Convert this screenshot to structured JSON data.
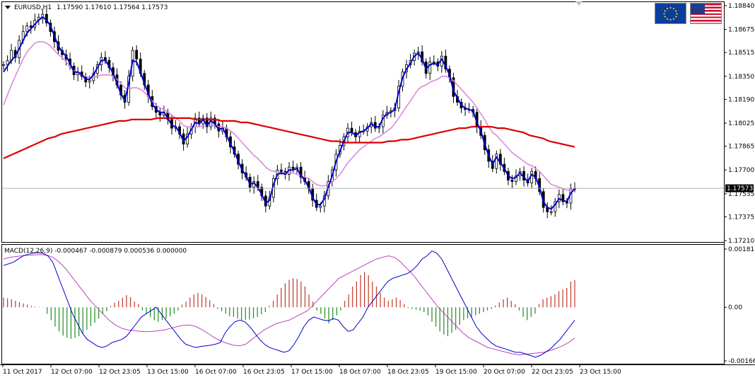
{
  "header": {
    "symbol": "EURUSD,H1",
    "ohlc": "1.17590 1.17610 1.17564 1.17573"
  },
  "macd_header": {
    "label": "MACD(12,26,9) -0.000467 -0.000879 0.000536 0.000000"
  },
  "flags": {
    "left": "eu-flag-icon",
    "right": "us-flag-icon"
  },
  "colors": {
    "bull_candle": "#000000",
    "bear_candle": "#000000",
    "ma_fast": "#0000cc",
    "ma_mid": "#dd88dd",
    "ma_slow": "#dd0000",
    "histogram_pos": "#c0392b",
    "histogram_neg": "#1e8c1e",
    "macd_line": "#0000cc",
    "signal_line": "#bb44bb",
    "grid_line": "#c0c0c0"
  },
  "chart_data": [
    {
      "type": "candlestick",
      "title": "EURUSD,H1",
      "yticks": [
        "1.18840",
        "1.18675",
        "1.18515",
        "1.18350",
        "1.18190",
        "1.18025",
        "1.17865",
        "1.17700",
        "1.17535",
        "1.17375",
        "1.17210"
      ],
      "ylim": [
        1.1721,
        1.1884
      ],
      "current_price": "1.17573",
      "xticks": [
        "11 Oct 2017",
        "12 Oct 07:00",
        "12 Oct 23:05",
        "13 Oct 15:00",
        "16 Oct 07:00",
        "16 Oct 23:05",
        "17 Oct 15:00",
        "18 Oct 07:00",
        "18 Oct 23:05",
        "19 Oct 15:00",
        "20 Oct 07:00",
        "22 Oct 23:05",
        "23 Oct 15:00"
      ],
      "close": [
        1.1843,
        1.1846,
        1.1853,
        1.1848,
        1.186,
        1.1866,
        1.187,
        1.1869,
        1.1874,
        1.1876,
        1.1878,
        1.1872,
        1.1866,
        1.1859,
        1.1853,
        1.185,
        1.1847,
        1.1842,
        1.1836,
        1.1838,
        1.1835,
        1.1831,
        1.1832,
        1.1837,
        1.1843,
        1.1848,
        1.1846,
        1.1841,
        1.1836,
        1.1829,
        1.1822,
        1.1817,
        1.1835,
        1.1853,
        1.1847,
        1.1837,
        1.1829,
        1.1821,
        1.1814,
        1.181,
        1.1808,
        1.181,
        1.1805,
        1.1799,
        1.18,
        1.1795,
        1.1788,
        1.1795,
        1.18,
        1.1806,
        1.1802,
        1.1806,
        1.18,
        1.1806,
        1.1802,
        1.1797,
        1.1799,
        1.1793,
        1.1786,
        1.1781,
        1.1774,
        1.1768,
        1.1765,
        1.1758,
        1.1762,
        1.1758,
        1.1752,
        1.1745,
        1.1751,
        1.1764,
        1.177,
        1.1769,
        1.1767,
        1.1772,
        1.1771,
        1.1772,
        1.1765,
        1.1762,
        1.1757,
        1.1749,
        1.1744,
        1.1745,
        1.1752,
        1.1762,
        1.177,
        1.1781,
        1.1787,
        1.1793,
        1.1799,
        1.1796,
        1.1793,
        1.1797,
        1.1797,
        1.18,
        1.1803,
        1.1799,
        1.18,
        1.1808,
        1.181,
        1.1811,
        1.1813,
        1.1828,
        1.1838,
        1.1843,
        1.1846,
        1.1851,
        1.1852,
        1.1845,
        1.1837,
        1.1845,
        1.1845,
        1.1842,
        1.1849,
        1.184,
        1.1834,
        1.1821,
        1.1817,
        1.1813,
        1.1812,
        1.1812,
        1.181,
        1.18,
        1.1794,
        1.1784,
        1.1776,
        1.1771,
        1.1781,
        1.1774,
        1.1769,
        1.1763,
        1.1762,
        1.1766,
        1.1769,
        1.1763,
        1.1761,
        1.1769,
        1.1764,
        1.1755,
        1.1744,
        1.1741,
        1.1741,
        1.1748,
        1.1753,
        1.1748,
        1.1747,
        1.1757,
        1.1757
      ],
      "ma_fast": [
        1.1838,
        1.1842,
        1.1846,
        1.1849,
        1.1854,
        1.186,
        1.1865,
        1.1868,
        1.1871,
        1.1874,
        1.1876,
        1.1874,
        1.187,
        1.1863,
        1.1856,
        1.1852,
        1.1849,
        1.1844,
        1.1838,
        1.1838,
        1.1836,
        1.1833,
        1.1833,
        1.1836,
        1.1841,
        1.1846,
        1.1846,
        1.1842,
        1.1837,
        1.183,
        1.1823,
        1.1818,
        1.183,
        1.1846,
        1.1845,
        1.1838,
        1.183,
        1.1823,
        1.1816,
        1.1812,
        1.181,
        1.181,
        1.1806,
        1.1801,
        1.18,
        1.1796,
        1.179,
        1.1793,
        1.1798,
        1.1803,
        1.1802,
        1.1805,
        1.1801,
        1.1804,
        1.1802,
        1.1798,
        1.1799,
        1.1794,
        1.1788,
        1.1783,
        1.1776,
        1.177,
        1.1766,
        1.176,
        1.1761,
        1.1758,
        1.1753,
        1.1747,
        1.1749,
        1.176,
        1.1767,
        1.1768,
        1.1767,
        1.177,
        1.177,
        1.1771,
        1.1766,
        1.1763,
        1.1758,
        1.1751,
        1.1746,
        1.1746,
        1.175,
        1.1758,
        1.1766,
        1.1776,
        1.1783,
        1.179,
        1.1796,
        1.1796,
        1.1794,
        1.1796,
        1.1797,
        1.1799,
        1.1802,
        1.18,
        1.18,
        1.1806,
        1.1809,
        1.181,
        1.1812,
        1.1824,
        1.1834,
        1.184,
        1.1844,
        1.1849,
        1.1851,
        1.1847,
        1.184,
        1.1843,
        1.1844,
        1.1843,
        1.1847,
        1.1842,
        1.1836,
        1.1825,
        1.182,
        1.1815,
        1.1813,
        1.1812,
        1.1811,
        1.1803,
        1.1797,
        1.1788,
        1.178,
        1.1774,
        1.1779,
        1.1775,
        1.1771,
        1.1766,
        1.1764,
        1.1765,
        1.1768,
        1.1765,
        1.1762,
        1.1767,
        1.1765,
        1.1758,
        1.1748,
        1.1744,
        1.1743,
        1.1746,
        1.175,
        1.1749,
        1.1748,
        1.1754,
        1.1757
      ],
      "ma_mid": [
        1.1815,
        1.1822,
        1.1829,
        1.1835,
        1.1841,
        1.1847,
        1.1852,
        1.1855,
        1.1858,
        1.1859,
        1.1859,
        1.1858,
        1.1856,
        1.1853,
        1.185,
        1.1848,
        1.1845,
        1.1842,
        1.1839,
        1.1837,
        1.1836,
        1.1835,
        1.1834,
        1.1834,
        1.1835,
        1.1836,
        1.1836,
        1.1836,
        1.1835,
        1.1833,
        1.183,
        1.1827,
        1.1826,
        1.1827,
        1.1827,
        1.1826,
        1.1824,
        1.1821,
        1.1818,
        1.1815,
        1.1813,
        1.1812,
        1.181,
        1.1808,
        1.1806,
        1.1804,
        1.1801,
        1.18,
        1.18,
        1.18,
        1.18,
        1.1801,
        1.1801,
        1.1801,
        1.1801,
        1.18,
        1.18,
        1.1799,
        1.1797,
        1.1795,
        1.1792,
        1.1789,
        1.1786,
        1.1783,
        1.178,
        1.1778,
        1.1775,
        1.1772,
        1.177,
        1.1769,
        1.1769,
        1.1768,
        1.1768,
        1.1768,
        1.1768,
        1.1767,
        1.1766,
        1.1765,
        1.1764,
        1.1762,
        1.176,
        1.1759,
        1.1759,
        1.176,
        1.1762,
        1.1764,
        1.1767,
        1.1771,
        1.1775,
        1.1778,
        1.1781,
        1.1784,
        1.1786,
        1.1788,
        1.179,
        1.1792,
        1.1793,
        1.1795,
        1.1797,
        1.1799,
        1.1802,
        1.1806,
        1.181,
        1.1814,
        1.1818,
        1.1822,
        1.1826,
        1.1828,
        1.1829,
        1.1831,
        1.1832,
        1.1833,
        1.1835,
        1.1835,
        1.1834,
        1.1832,
        1.1829,
        1.1826,
        1.1823,
        1.182,
        1.1817,
        1.1813,
        1.1809,
        1.1805,
        1.18,
        1.1796,
        1.1794,
        1.1791,
        1.1788,
        1.1785,
        1.1782,
        1.178,
        1.1778,
        1.1776,
        1.1774,
        1.1773,
        1.1771,
        1.1769,
        1.1766,
        1.1763,
        1.176,
        1.1759,
        1.1758,
        1.1757,
        1.1756,
        1.1756,
        1.1756
      ],
      "ma_slow_start": 1.1778,
      "ma_slow": [
        1.1778,
        1.178,
        1.1782,
        1.1784,
        1.1786,
        1.1788,
        1.179,
        1.1792,
        1.1793,
        1.1795,
        1.1796,
        1.1797,
        1.1798,
        1.1799,
        1.18,
        1.1801,
        1.1802,
        1.1803,
        1.1804,
        1.1804,
        1.1805,
        1.1805,
        1.1805,
        1.1805,
        1.1806,
        1.1806,
        1.1806,
        1.1806,
        1.1806,
        1.1806,
        1.1805,
        1.1805,
        1.1805,
        1.1805,
        1.1804,
        1.1804,
        1.1804,
        1.1803,
        1.1803,
        1.1802,
        1.1801,
        1.18,
        1.1799,
        1.1798,
        1.1797,
        1.1796,
        1.1795,
        1.1794,
        1.1793,
        1.1792,
        1.1791,
        1.179,
        1.179,
        1.1789,
        1.1789,
        1.1789,
        1.1789,
        1.1789,
        1.1789,
        1.1789,
        1.179,
        1.179,
        1.1791,
        1.1791,
        1.1792,
        1.1793,
        1.1794,
        1.1795,
        1.1796,
        1.1797,
        1.1798,
        1.1799,
        1.1799,
        1.18,
        1.18,
        1.18,
        1.18,
        1.1799,
        1.1799,
        1.1798,
        1.1797,
        1.1796,
        1.1794,
        1.1793,
        1.1792,
        1.179,
        1.1789,
        1.1788,
        1.1787,
        1.1786
      ]
    },
    {
      "type": "macd",
      "title": "MACD(12,26,9)",
      "yticks": [
        "0.00181",
        "0.00",
        "-0.001667"
      ],
      "ylim": [
        -0.001667,
        0.00181
      ],
      "histogram": [
        0.0003,
        0.00028,
        0.00025,
        0.0002,
        0.00016,
        0.00012,
        8e-05,
        4e-05,
        2e-05,
        1e-05,
        1e-05,
        -0.0002,
        -0.0004,
        -0.0006,
        -0.00075,
        -0.00088,
        -0.00095,
        -0.00098,
        -0.00095,
        -0.0009,
        -0.0008,
        -0.0007,
        -0.00058,
        -0.00048,
        -0.00035,
        -0.00022,
        -0.00012,
        4e-05,
        0.00014,
        0.0002,
        0.0003,
        0.00038,
        0.00032,
        0.00018,
        0.0001,
        -0.0001,
        -0.0002,
        -0.0003,
        -0.0004,
        -0.00045,
        -0.0004,
        -0.00035,
        -0.00028,
        -0.0002,
        -0.0001,
        8e-05,
        0.00018,
        0.0003,
        0.0004,
        0.00045,
        0.0004,
        0.00032,
        0.00022,
        0.0001,
        -5e-05,
        -0.00012,
        -0.0002,
        -0.00028,
        -0.0003,
        -0.00035,
        -0.0004,
        -0.0004,
        -0.00038,
        -0.00034,
        -0.0003,
        -0.00022,
        -0.00015,
        5e-05,
        0.0002,
        0.0004,
        0.0006,
        0.00075,
        0.00085,
        0.0009,
        0.00088,
        0.0008,
        0.00065,
        0.0004,
        0.00018,
        -0.0001,
        -0.0002,
        -0.00035,
        -0.0005,
        -0.0004,
        -0.00025,
        -0.0001,
        0.0002,
        0.0004,
        0.00065,
        0.0008,
        0.001,
        0.0011,
        0.001,
        0.0008,
        0.00065,
        0.00045,
        0.0003,
        0.0002,
        0.00025,
        0.0003,
        0.00022,
        0.0001,
        -2e-05,
        -5e-05,
        -8e-05,
        -0.0001,
        -0.00015,
        -0.00025,
        -0.00045,
        -0.0006,
        -0.00075,
        -0.00085,
        -0.0009,
        -0.0008,
        -0.0007,
        -0.00055,
        -0.0004,
        -0.00035,
        -0.0003,
        -0.00025,
        -0.0002,
        -0.00015,
        -0.0001,
        -5e-05,
        5e-05,
        0.00015,
        0.00025,
        0.0003,
        0.0002,
        0.0001,
        -0.0001,
        -0.0003,
        -0.0004,
        -0.0003,
        -0.0002,
        0.0001,
        0.00025,
        0.0003,
        0.00035,
        0.0004,
        0.0005,
        0.00055,
        0.0006,
        0.0008,
        0.00085
      ],
      "macd": [
        0.0013,
        0.00135,
        0.0014,
        0.0015,
        0.0016,
        0.00165,
        0.00168,
        0.0017,
        0.00168,
        0.0016,
        0.0014,
        0.001,
        0.0006,
        0.0002,
        -0.0002,
        -0.0005,
        -0.0008,
        -0.001,
        -0.0011,
        -0.0012,
        -0.00125,
        -0.0012,
        -0.0011,
        -0.00105,
        -0.001,
        -0.0009,
        -0.0007,
        -0.0005,
        -0.0003,
        -0.0002,
        -0.0001,
        0.0,
        -0.0002,
        -0.0004,
        -0.0006,
        -0.0008,
        -0.001,
        -0.00115,
        -0.0012,
        -0.00125,
        -0.00122,
        -0.0012,
        -0.00118,
        -0.00115,
        -0.0011,
        -0.0008,
        -0.0006,
        -0.00045,
        -0.0004,
        -0.00045,
        -0.0006,
        -0.0008,
        -0.001,
        -0.00115,
        -0.00125,
        -0.0013,
        -0.00135,
        -0.0014,
        -0.00135,
        -0.00115,
        -0.0009,
        -0.0006,
        -0.0004,
        -0.0003,
        -0.00035,
        -0.0004,
        -0.00042,
        -0.00035,
        -0.0004,
        -0.0006,
        -0.00075,
        -0.0007,
        -0.0005,
        -0.0003,
        0.0,
        0.0002,
        0.0004,
        0.0006,
        0.0008,
        0.0009,
        0.00095,
        0.001,
        0.00105,
        0.00115,
        0.0013,
        0.0015,
        0.0016,
        0.00175,
        0.00168,
        0.0015,
        0.0012,
        0.0009,
        0.0006,
        0.0003,
        0.0,
        -0.0003,
        -0.0006,
        -0.0008,
        -0.00095,
        -0.0011,
        -0.0012,
        -0.00125,
        -0.0013,
        -0.00135,
        -0.0014,
        -0.0014,
        -0.00145,
        -0.0015,
        -0.00155,
        -0.0015,
        -0.0014,
        -0.0013,
        -0.00115,
        -0.001,
        -0.0008,
        -0.0006,
        -0.0004
      ],
      "signal": [
        0.0015,
        0.00155,
        0.00158,
        0.0016,
        0.00162,
        0.00163,
        0.00164,
        0.00162,
        0.00155,
        0.0014,
        0.0012,
        0.00095,
        0.0007,
        0.00045,
        0.0002,
        0.0,
        -0.0002,
        -0.0004,
        -0.00055,
        -0.00065,
        -0.0007,
        -0.00072,
        -0.00075,
        -0.00076,
        -0.00075,
        -0.00073,
        -0.0007,
        -0.00065,
        -0.0006,
        -0.00056,
        -0.00055,
        -0.0006,
        -0.0007,
        -0.00082,
        -0.00095,
        -0.00105,
        -0.00112,
        -0.00118,
        -0.0012,
        -0.00115,
        -0.001,
        -0.00085,
        -0.0007,
        -0.0006,
        -0.0005,
        -0.00045,
        -0.0004,
        -0.0003,
        -0.0002,
        -0.0001,
        0.0001,
        0.0003,
        0.0005,
        0.0007,
        0.0009,
        0.001,
        0.0011,
        0.0012,
        0.0013,
        0.0014,
        0.0015,
        0.00155,
        0.0016,
        0.00155,
        0.0014,
        0.0012,
        0.001,
        0.00075,
        0.0005,
        0.00025,
        0.0,
        -0.0002,
        -0.0004,
        -0.0006,
        -0.0008,
        -0.00095,
        -0.00105,
        -0.00115,
        -0.00125,
        -0.0013,
        -0.00135,
        -0.0014,
        -0.00145,
        -0.00148,
        -0.00146,
        -0.00144,
        -0.00142,
        -0.0014,
        -0.00135,
        -0.00128,
        -0.0012,
        -0.0011,
        -0.00095
      ]
    }
  ]
}
